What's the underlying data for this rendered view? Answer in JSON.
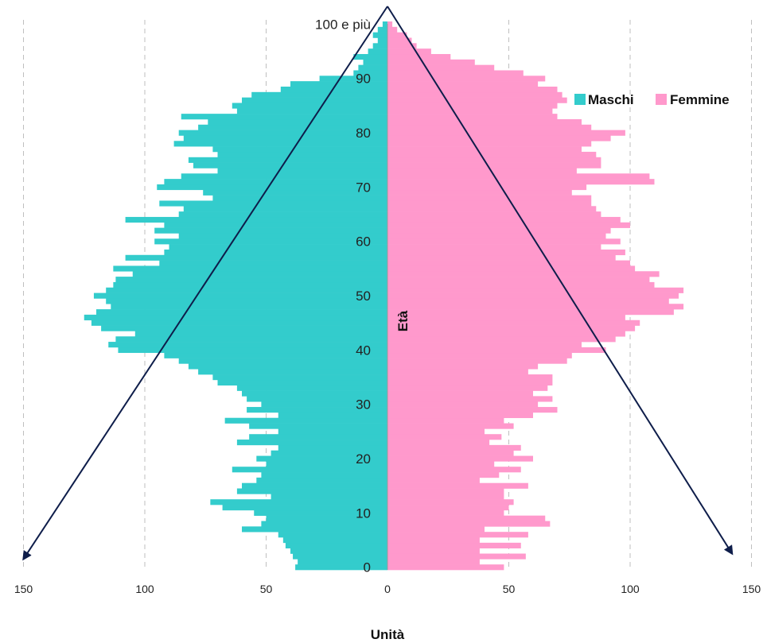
{
  "chart_data": {
    "type": "bar",
    "orientation": "horizontal",
    "subtype": "population-pyramid",
    "xlabel": "Unità",
    "ylabel": "Età",
    "xlim": [
      -150,
      150
    ],
    "x_ticks": [
      {
        "value": -150,
        "label": "150"
      },
      {
        "value": -100,
        "label": "100"
      },
      {
        "value": -50,
        "label": "50"
      },
      {
        "value": 0,
        "label": "0"
      },
      {
        "value": 50,
        "label": "50"
      },
      {
        "value": 100,
        "label": "100"
      },
      {
        "value": 150,
        "label": "150"
      }
    ],
    "y_ticks": [
      {
        "age": 0,
        "label": "0"
      },
      {
        "age": 10,
        "label": "10"
      },
      {
        "age": 20,
        "label": "20"
      },
      {
        "age": 30,
        "label": "30"
      },
      {
        "age": 40,
        "label": "40"
      },
      {
        "age": 50,
        "label": "50"
      },
      {
        "age": 60,
        "label": "60"
      },
      {
        "age": 70,
        "label": "70"
      },
      {
        "age": 80,
        "label": "80"
      },
      {
        "age": 90,
        "label": "90"
      },
      {
        "age": 100,
        "label": "100 e più"
      }
    ],
    "grid": "vertical dashed",
    "legend_position": "top-right",
    "ages": [
      0,
      1,
      2,
      3,
      4,
      5,
      6,
      7,
      8,
      9,
      10,
      11,
      12,
      13,
      14,
      15,
      16,
      17,
      18,
      19,
      20,
      21,
      22,
      23,
      24,
      25,
      26,
      27,
      28,
      29,
      30,
      31,
      32,
      33,
      34,
      35,
      36,
      37,
      38,
      39,
      40,
      41,
      42,
      43,
      44,
      45,
      46,
      47,
      48,
      49,
      50,
      51,
      52,
      53,
      54,
      55,
      56,
      57,
      58,
      59,
      60,
      61,
      62,
      63,
      64,
      65,
      66,
      67,
      68,
      69,
      70,
      71,
      72,
      73,
      74,
      75,
      76,
      77,
      78,
      79,
      80,
      81,
      82,
      83,
      84,
      85,
      86,
      87,
      88,
      89,
      90,
      91,
      92,
      93,
      94,
      95,
      96,
      97,
      98,
      99,
      100
    ],
    "series": [
      {
        "name": "Maschi",
        "color": "#33CCCC",
        "values": [
          38,
          37,
          39,
          40,
          42,
          43,
          45,
          60,
          52,
          50,
          55,
          68,
          73,
          48,
          62,
          60,
          54,
          52,
          64,
          50,
          54,
          48,
          45,
          62,
          57,
          45,
          57,
          67,
          45,
          58,
          52,
          58,
          60,
          62,
          70,
          72,
          78,
          82,
          86,
          92,
          111,
          115,
          112,
          104,
          118,
          122,
          125,
          120,
          114,
          116,
          121,
          116,
          113,
          112,
          105,
          113,
          94,
          108,
          92,
          90,
          96,
          86,
          96,
          92,
          108,
          86,
          84,
          94,
          72,
          76,
          95,
          92,
          85,
          70,
          80,
          82,
          70,
          72,
          88,
          84,
          86,
          78,
          74,
          85,
          62,
          64,
          60,
          56,
          44,
          40,
          28,
          14,
          12,
          10,
          14,
          8,
          6,
          4,
          6,
          4,
          2
        ]
      },
      {
        "name": "Femmine",
        "color": "#FF99CC",
        "values": [
          48,
          38,
          57,
          38,
          55,
          38,
          58,
          40,
          67,
          65,
          48,
          50,
          52,
          48,
          48,
          58,
          38,
          46,
          55,
          44,
          60,
          52,
          55,
          42,
          47,
          40,
          52,
          48,
          60,
          70,
          62,
          68,
          60,
          66,
          68,
          68,
          58,
          62,
          74,
          76,
          90,
          80,
          94,
          98,
          102,
          104,
          98,
          118,
          122,
          116,
          120,
          122,
          110,
          108,
          112,
          102,
          100,
          94,
          98,
          88,
          96,
          90,
          92,
          100,
          96,
          88,
          86,
          84,
          84,
          76,
          82,
          110,
          108,
          78,
          88,
          88,
          86,
          80,
          84,
          92,
          98,
          84,
          80,
          70,
          68,
          70,
          74,
          72,
          70,
          62,
          65,
          56,
          44,
          36,
          26,
          18,
          12,
          10,
          8,
          4,
          2
        ]
      }
    ],
    "annotations": [
      {
        "type": "arrow",
        "from": [
          0,
          102
        ],
        "to": [
          -150,
          2
        ]
      },
      {
        "type": "arrow",
        "from": [
          0,
          102
        ],
        "to": [
          142,
          3
        ]
      }
    ]
  }
}
